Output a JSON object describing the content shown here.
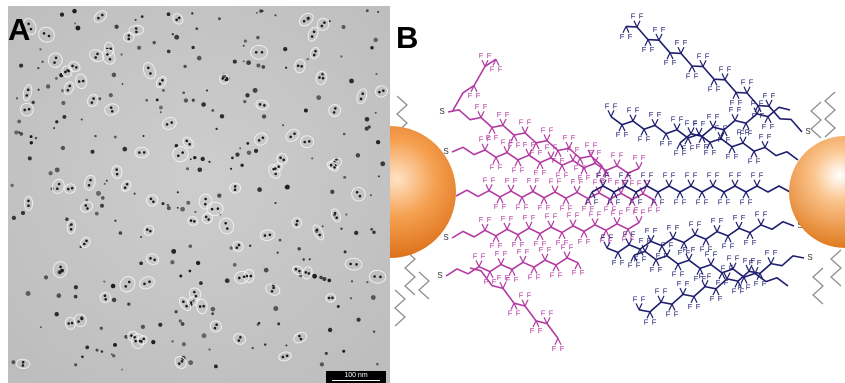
{
  "panel_a": {
    "label": "A",
    "scale_bar": "100 nm",
    "background_color": "#c6c6c6",
    "particle_color": "#1a1a1a",
    "circle_color": "#f2f2f2"
  },
  "panel_b": {
    "label": "B",
    "fluorine_label": "F",
    "sulfur_label": "S",
    "colors": {
      "gold_nanoparticle": "#f08a2a",
      "left_chain": "#b23aa0",
      "right_chain": "#1f1e6e",
      "alkyl_chain": "#8f8f8f"
    }
  }
}
